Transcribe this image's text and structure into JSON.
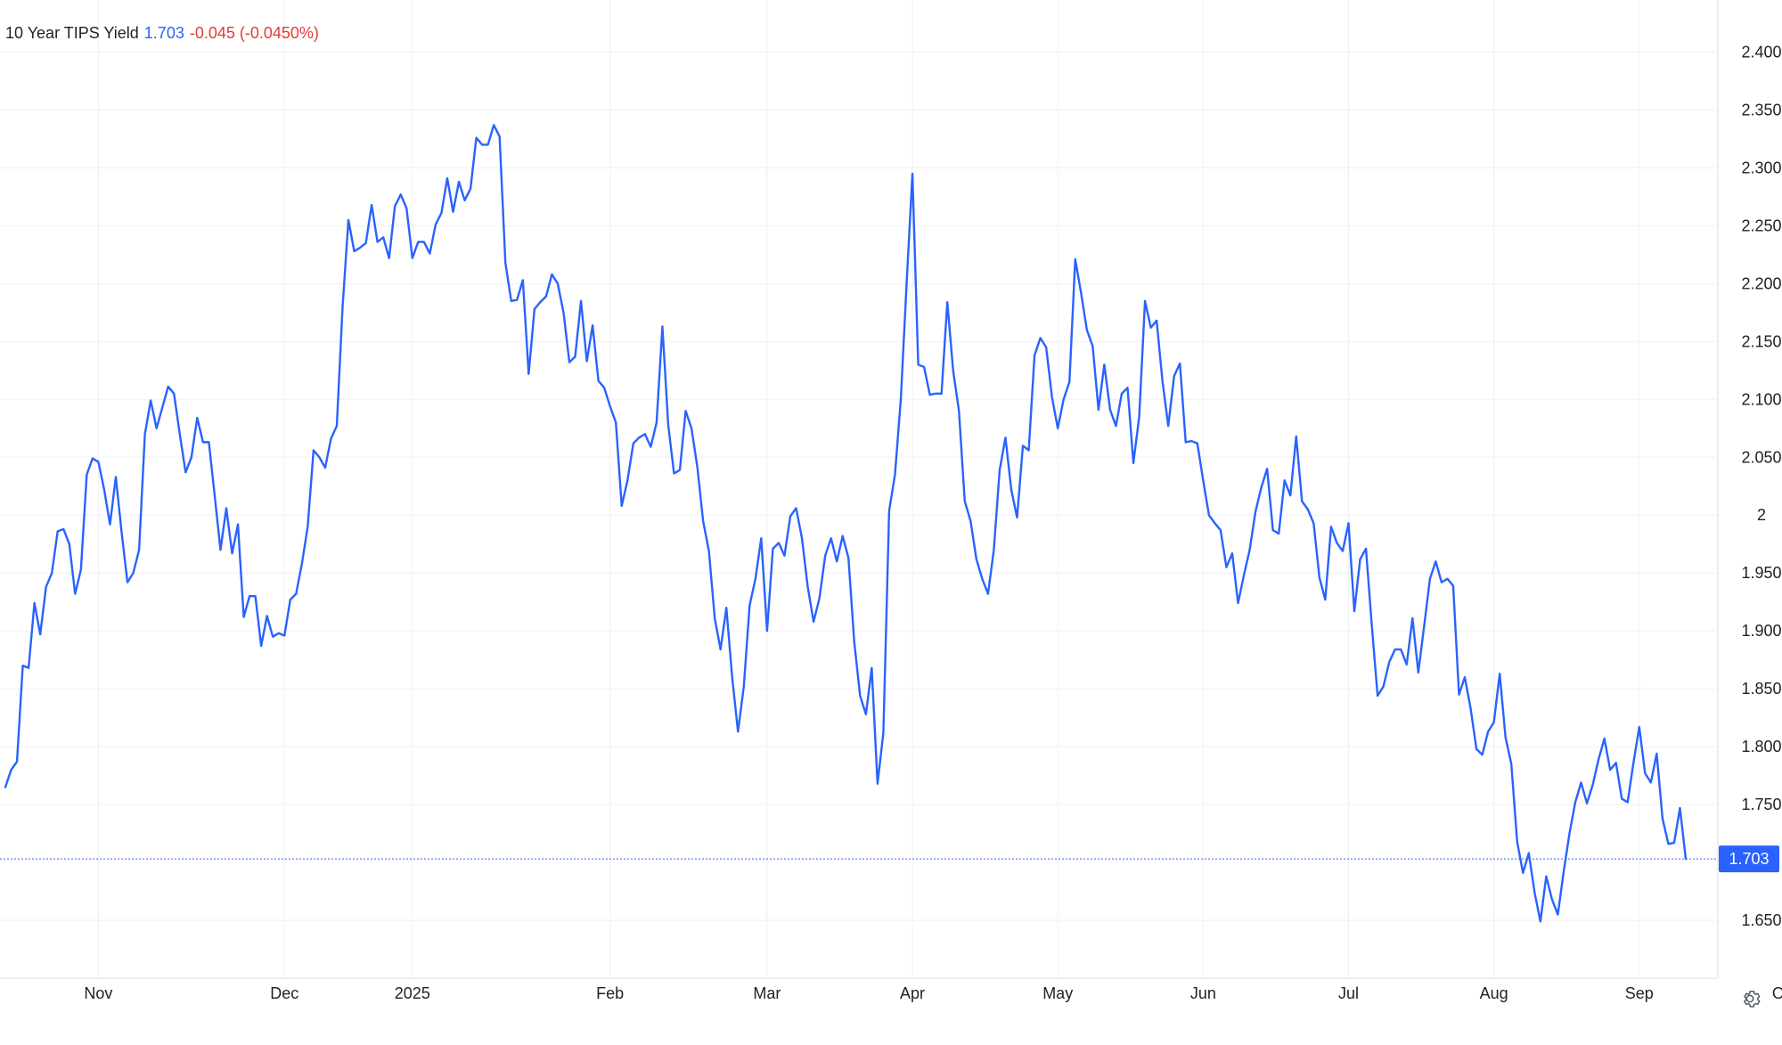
{
  "header": {
    "title": "10 Year TIPS Yield",
    "value": "1.703",
    "change": "-0.045 (-0.0450%)"
  },
  "colors": {
    "line": "#2962ff",
    "grid": "#eef0f3",
    "positive": "#2962ff",
    "negative": "#e53935",
    "text": "#222222",
    "last_label_bg": "#2962ff",
    "last_label_text": "#ffffff"
  },
  "icons": {
    "settings": "gear-icon"
  },
  "chart_data": {
    "type": "line",
    "title": "10 Year TIPS Yield",
    "xlabel": "",
    "ylabel": "",
    "ylim": [
      1.6,
      2.445
    ],
    "y_axis_position": "right",
    "grid": true,
    "legend": "none",
    "last_value": 1.703,
    "last_value_label": "1.703",
    "x_ticks": [
      {
        "label": "Nov",
        "index": 16
      },
      {
        "label": "Dec",
        "index": 48
      },
      {
        "label": "2025",
        "index": 70
      },
      {
        "label": "Feb",
        "index": 104
      },
      {
        "label": "Mar",
        "index": 131
      },
      {
        "label": "Apr",
        "index": 156
      },
      {
        "label": "May",
        "index": 181
      },
      {
        "label": "Jun",
        "index": 206
      },
      {
        "label": "Jul",
        "index": 231
      },
      {
        "label": "Aug",
        "index": 256
      },
      {
        "label": "Sep",
        "index": 281
      },
      {
        "label": "Oct",
        "index": 306
      }
    ],
    "y_ticks": [
      {
        "value": 1.65,
        "label": "1.650"
      },
      {
        "value": 1.75,
        "label": "1.750"
      },
      {
        "value": 1.8,
        "label": "1.800"
      },
      {
        "value": 1.85,
        "label": "1.850"
      },
      {
        "value": 1.9,
        "label": "1.900"
      },
      {
        "value": 1.95,
        "label": "1.950"
      },
      {
        "value": 2.0,
        "label": "2"
      },
      {
        "value": 2.05,
        "label": "2.050"
      },
      {
        "value": 2.1,
        "label": "2.100"
      },
      {
        "value": 2.15,
        "label": "2.150"
      },
      {
        "value": 2.2,
        "label": "2.200"
      },
      {
        "value": 2.25,
        "label": "2.250"
      },
      {
        "value": 2.3,
        "label": "2.300"
      },
      {
        "value": 2.35,
        "label": "2.350"
      },
      {
        "value": 2.4,
        "label": "2.400"
      }
    ],
    "series": [
      {
        "values": [
          1.765,
          1.78,
          1.787,
          1.87,
          1.868,
          1.924,
          1.897,
          1.938,
          1.95,
          1.986,
          1.988,
          1.975,
          1.932,
          1.953,
          2.035,
          2.049,
          2.046,
          2.022,
          1.992,
          2.033,
          1.985,
          1.942,
          1.95,
          1.97,
          2.07,
          2.099,
          2.075,
          2.093,
          2.111,
          2.105,
          2.07,
          2.037,
          2.05,
          2.084,
          2.063,
          2.063,
          2.017,
          1.97,
          2.006,
          1.967,
          1.992,
          1.912,
          1.93,
          1.93,
          1.887,
          1.913,
          1.895,
          1.898,
          1.896,
          1.927,
          1.932,
          1.958,
          1.99,
          2.056,
          2.05,
          2.041,
          2.066,
          2.077,
          2.18,
          2.255,
          2.228,
          2.231,
          2.235,
          2.268,
          2.236,
          2.24,
          2.222,
          2.267,
          2.277,
          2.265,
          2.222,
          2.236,
          2.236,
          2.226,
          2.251,
          2.261,
          2.291,
          2.262,
          2.288,
          2.272,
          2.282,
          2.326,
          2.32,
          2.32,
          2.337,
          2.327,
          2.218,
          2.185,
          2.186,
          2.203,
          2.122,
          2.178,
          2.184,
          2.189,
          2.208,
          2.2,
          2.175,
          2.132,
          2.137,
          2.185,
          2.133,
          2.164,
          2.116,
          2.11,
          2.094,
          2.08,
          2.008,
          2.03,
          2.062,
          2.067,
          2.07,
          2.059,
          2.08,
          2.163,
          2.078,
          2.036,
          2.039,
          2.09,
          2.075,
          2.042,
          1.995,
          1.969,
          1.911,
          1.884,
          1.92,
          1.86,
          1.813,
          1.852,
          1.922,
          1.945,
          1.98,
          1.9,
          1.971,
          1.976,
          1.965,
          1.999,
          2.006,
          1.98,
          1.938,
          1.908,
          1.928,
          1.965,
          1.98,
          1.96,
          1.982,
          1.963,
          1.89,
          1.844,
          1.828,
          1.868,
          1.768,
          1.812,
          2.004,
          2.035,
          2.1,
          2.2,
          2.295,
          2.13,
          2.128,
          2.104,
          2.105,
          2.105,
          2.184,
          2.125,
          2.09,
          2.012,
          1.995,
          1.962,
          1.945,
          1.932,
          1.97,
          2.039,
          2.067,
          2.022,
          1.998,
          2.06,
          2.056,
          2.138,
          2.153,
          2.145,
          2.102,
          2.075,
          2.1,
          2.115,
          2.221,
          2.192,
          2.16,
          2.146,
          2.091,
          2.13,
          2.091,
          2.077,
          2.105,
          2.11,
          2.045,
          2.085,
          2.185,
          2.162,
          2.168,
          2.116,
          2.077,
          2.12,
          2.131,
          2.063,
          2.064,
          2.062,
          2.03,
          2.0,
          1.993,
          1.987,
          1.955,
          1.967,
          1.924,
          1.948,
          1.97,
          2.003,
          2.024,
          2.04,
          1.987,
          1.984,
          2.03,
          2.017,
          2.068,
          2.012,
          2.005,
          1.993,
          1.946,
          1.927,
          1.99,
          1.976,
          1.969,
          1.993,
          1.917,
          1.962,
          1.971,
          1.905,
          1.844,
          1.852,
          1.873,
          1.884,
          1.884,
          1.871,
          1.911,
          1.864,
          1.904,
          1.945,
          1.96,
          1.942,
          1.945,
          1.939,
          1.845,
          1.86,
          1.833,
          1.798,
          1.793,
          1.813,
          1.821,
          1.863,
          1.808,
          1.785,
          1.718,
          1.691,
          1.708,
          1.674,
          1.649,
          1.688,
          1.668,
          1.655,
          1.692,
          1.725,
          1.752,
          1.769,
          1.751,
          1.767,
          1.789,
          1.807,
          1.78,
          1.786,
          1.755,
          1.752,
          1.786,
          1.817,
          1.777,
          1.769,
          1.794,
          1.738,
          1.716,
          1.717,
          1.747,
          1.703
        ]
      }
    ]
  }
}
